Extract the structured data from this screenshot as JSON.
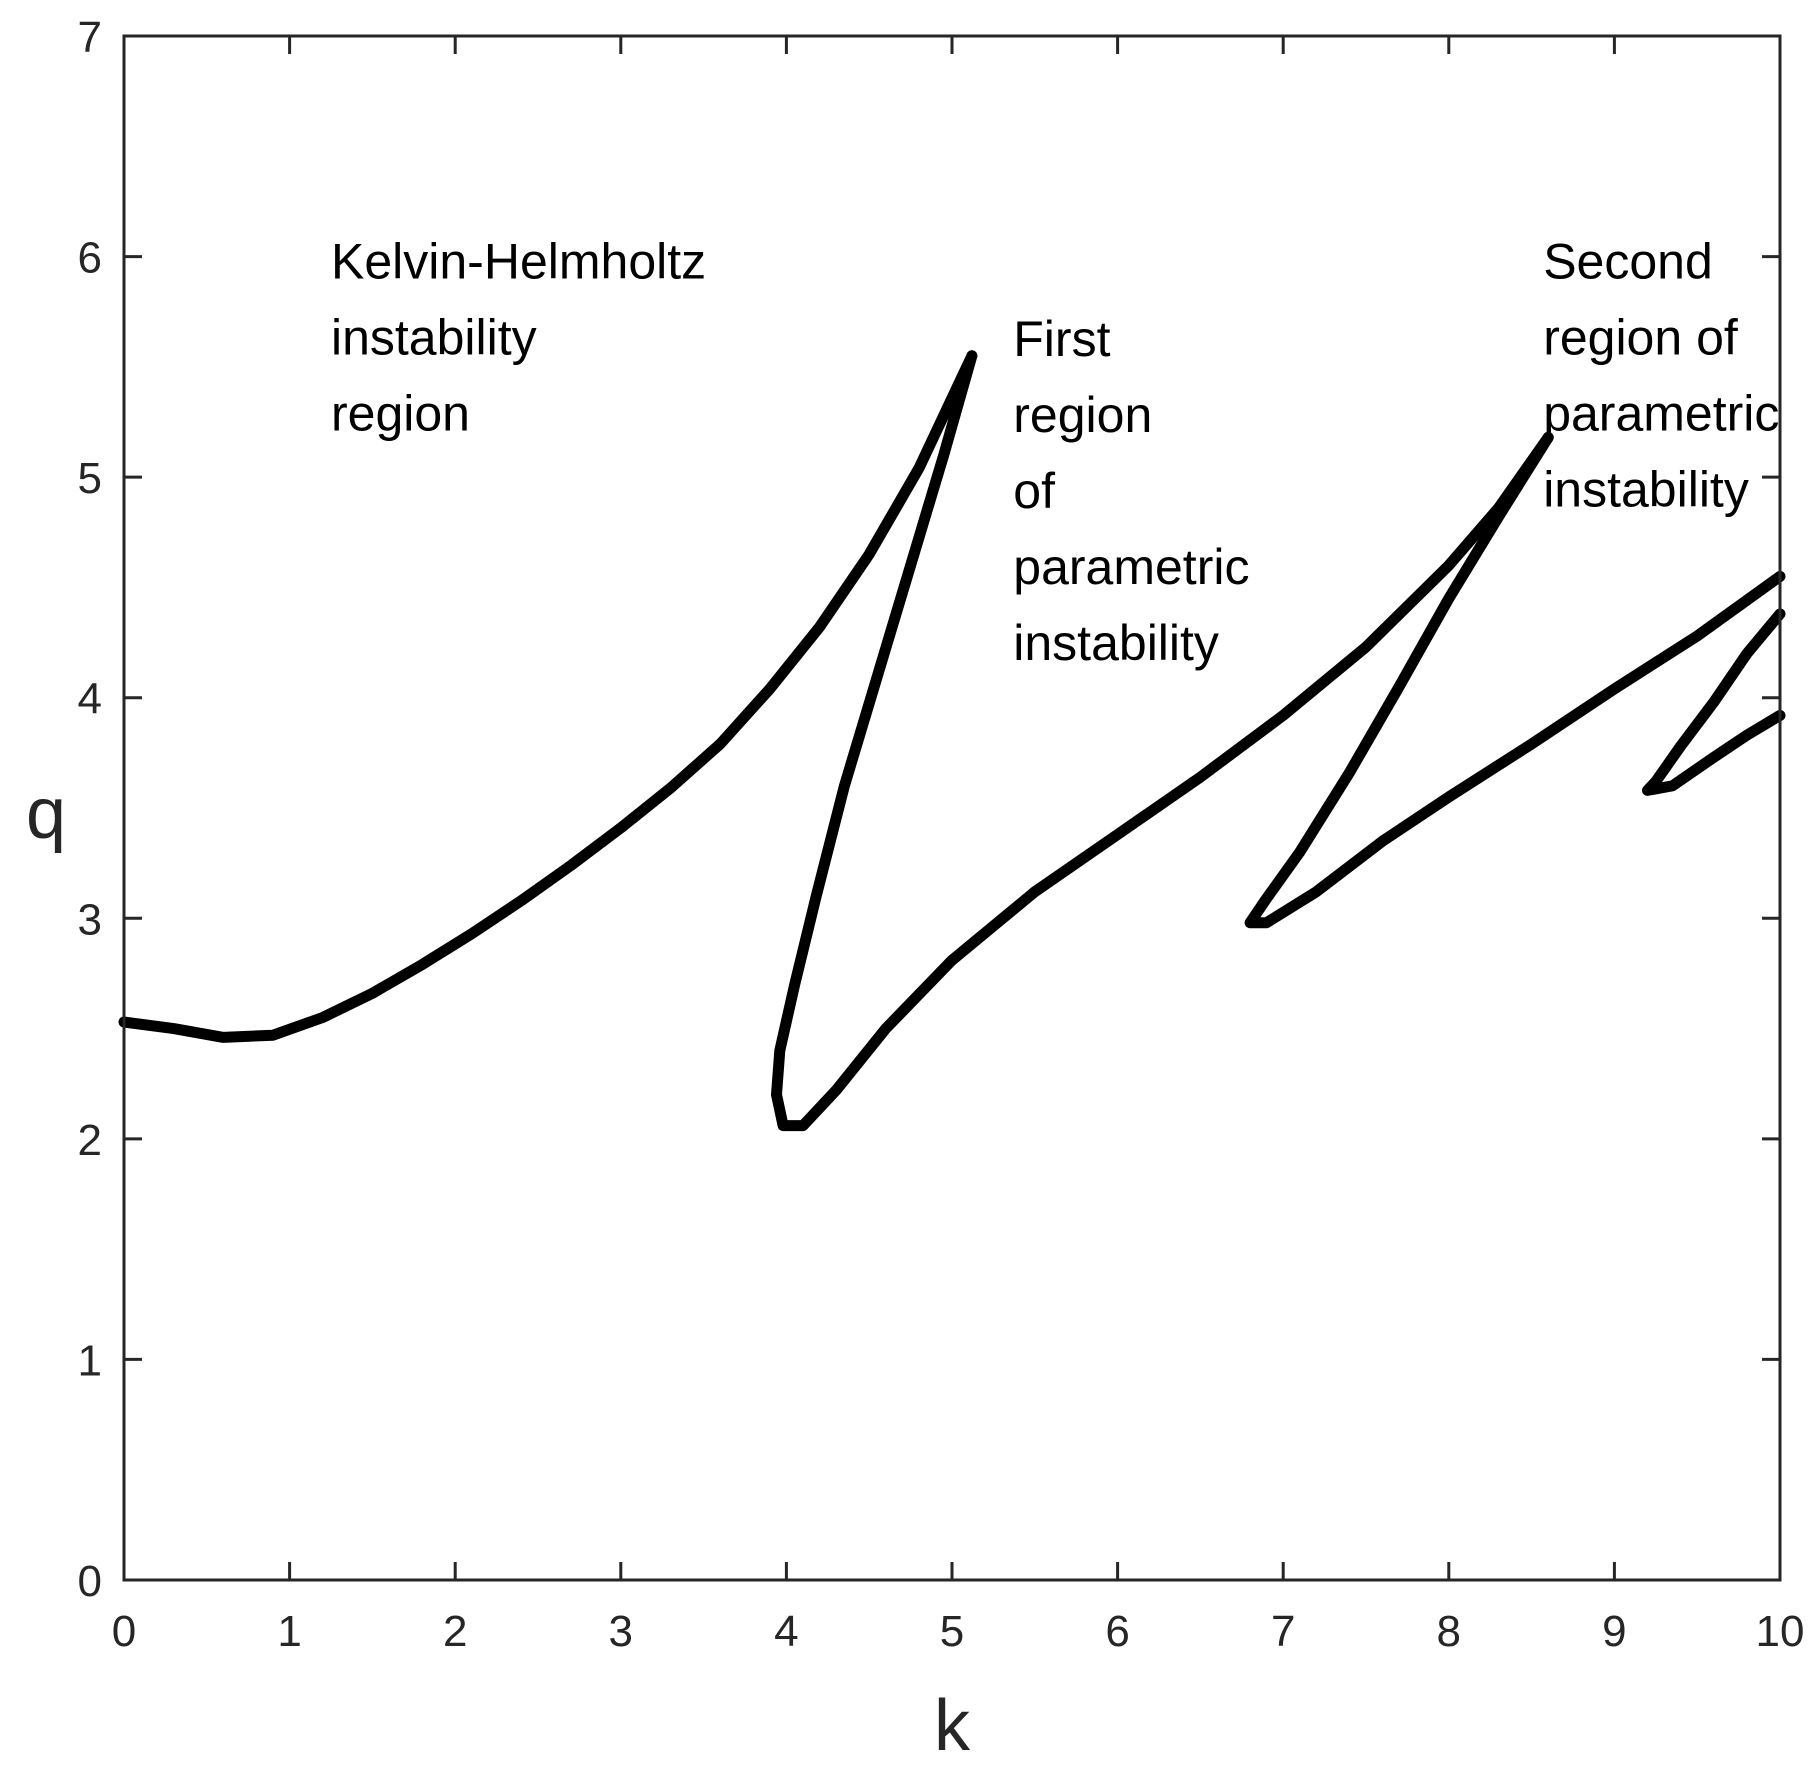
{
  "chart_data": {
    "type": "line",
    "xlabel": "k",
    "ylabel": "q",
    "xlim": [
      0,
      10
    ],
    "ylim": [
      0,
      7
    ],
    "xticks": [
      0,
      1,
      2,
      3,
      4,
      5,
      6,
      7,
      8,
      9,
      10
    ],
    "yticks": [
      0,
      1,
      2,
      3,
      4,
      5,
      6,
      7
    ],
    "grid": false,
    "legend": "none",
    "line_color": "#000000",
    "series": [
      {
        "values": [
          [
            0.0,
            2.53
          ],
          [
            0.3,
            2.5
          ],
          [
            0.6,
            2.46
          ],
          [
            0.9,
            2.47
          ],
          [
            1.2,
            2.55
          ],
          [
            1.5,
            2.66
          ],
          [
            1.8,
            2.79
          ],
          [
            2.1,
            2.93
          ],
          [
            2.4,
            3.08
          ],
          [
            2.7,
            3.24
          ],
          [
            3.0,
            3.41
          ],
          [
            3.3,
            3.59
          ],
          [
            3.6,
            3.79
          ],
          [
            3.9,
            4.04
          ],
          [
            4.2,
            4.32
          ],
          [
            4.5,
            4.65
          ],
          [
            4.8,
            5.04
          ],
          [
            5.12,
            5.55
          ]
        ]
      },
      {
        "values": [
          [
            5.12,
            5.55
          ],
          [
            4.95,
            5.1
          ],
          [
            4.75,
            4.6
          ],
          [
            4.55,
            4.1
          ],
          [
            4.35,
            3.6
          ],
          [
            4.18,
            3.1
          ],
          [
            4.05,
            2.7
          ],
          [
            3.96,
            2.4
          ],
          [
            3.94,
            2.2
          ],
          [
            3.98,
            2.06
          ],
          [
            4.1,
            2.06
          ],
          [
            4.3,
            2.22
          ],
          [
            4.6,
            2.5
          ],
          [
            5.0,
            2.81
          ],
          [
            5.5,
            3.12
          ],
          [
            6.0,
            3.38
          ],
          [
            6.5,
            3.64
          ],
          [
            7.0,
            3.92
          ],
          [
            7.5,
            4.23
          ],
          [
            8.0,
            4.6
          ],
          [
            8.3,
            4.86
          ],
          [
            8.6,
            5.18
          ]
        ]
      },
      {
        "values": [
          [
            8.6,
            5.18
          ],
          [
            8.3,
            4.82
          ],
          [
            8.0,
            4.45
          ],
          [
            7.7,
            4.05
          ],
          [
            7.4,
            3.66
          ],
          [
            7.1,
            3.3
          ],
          [
            6.9,
            3.09
          ],
          [
            6.8,
            2.98
          ],
          [
            6.9,
            2.98
          ],
          [
            7.2,
            3.12
          ],
          [
            7.6,
            3.35
          ],
          [
            8.0,
            3.55
          ],
          [
            8.5,
            3.79
          ],
          [
            9.0,
            4.04
          ],
          [
            9.5,
            4.28
          ],
          [
            10.0,
            4.55
          ]
        ]
      },
      {
        "values": [
          [
            10.0,
            4.38
          ],
          [
            9.8,
            4.2
          ],
          [
            9.6,
            3.98
          ],
          [
            9.4,
            3.78
          ],
          [
            9.25,
            3.62
          ],
          [
            9.2,
            3.58
          ],
          [
            9.35,
            3.6
          ],
          [
            9.6,
            3.73
          ],
          [
            9.8,
            3.83
          ],
          [
            10.0,
            3.92
          ]
        ]
      }
    ],
    "annotations": [
      {
        "lines": [
          "Kelvin-Helmholtz",
          "instability",
          "region"
        ],
        "x": 1.25,
        "y": 5.9
      },
      {
        "lines": [
          "First",
          "region",
          "of",
          "parametric",
          "instability"
        ],
        "x": 5.37,
        "y": 5.55
      },
      {
        "lines": [
          "Second",
          "region of",
          "parametric",
          "instability"
        ],
        "x": 8.57,
        "y": 5.9
      }
    ]
  }
}
